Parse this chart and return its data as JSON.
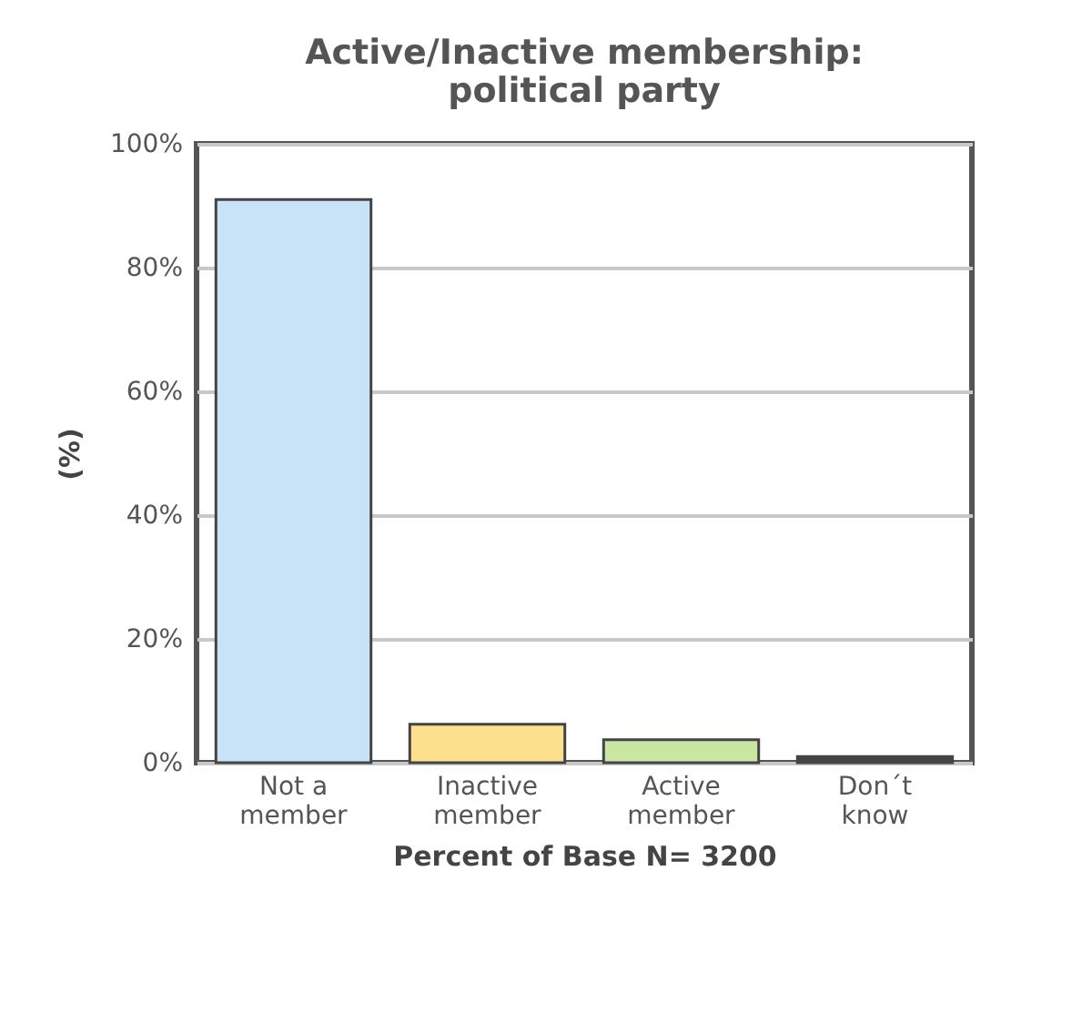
{
  "chart_data": {
    "type": "bar",
    "title": "Active/Inactive membership: political party",
    "xlabel": "Percent of Base N= 3200",
    "ylabel": "(%)",
    "categories": [
      "Not a member",
      "Inactive member",
      "Active member",
      "Don´t know"
    ],
    "values": [
      91,
      6.2,
      3.7,
      1
    ],
    "colors": [
      "#c8e3f7",
      "#fde08e",
      "#c9e6a3",
      "#444444"
    ],
    "ylim": [
      0,
      100
    ],
    "yticks": [
      {
        "value": 0,
        "label": "0%"
      },
      {
        "value": 20,
        "label": "20%"
      },
      {
        "value": 40,
        "label": "40%"
      },
      {
        "value": 60,
        "label": "60%"
      },
      {
        "value": 80,
        "label": "80%"
      },
      {
        "value": 100,
        "label": "100%"
      }
    ],
    "grid": "y"
  }
}
